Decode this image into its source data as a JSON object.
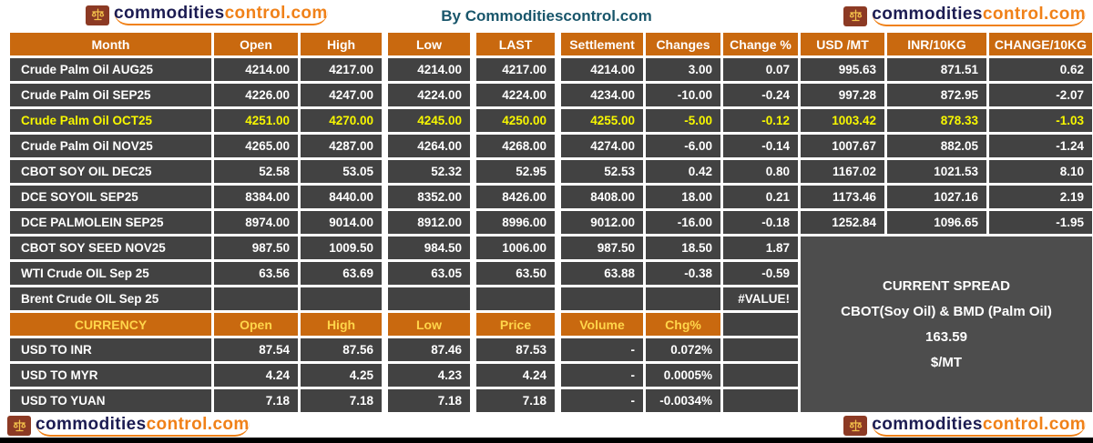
{
  "branding": {
    "logo_text_primary": "commodities",
    "logo_text_secondary": "control.com",
    "center_title": "By Commoditiescontrol.com"
  },
  "spread_panel": {
    "title": "CURRENT SPREAD",
    "subtitle": "CBOT(Soy Oil) & BMD (Palm Oil)",
    "value": "163.59",
    "unit": "$/MT"
  },
  "chart_data": [
    {
      "type": "table",
      "columns": [
        "Month",
        "Open",
        "High",
        "Low",
        "LAST",
        "Settlement",
        "Changes",
        "Change %",
        "USD /MT",
        "INR/10KG",
        "CHANGE/10KG"
      ],
      "highlight_row_index": 2,
      "spread_panel_start_row": 7,
      "rows": [
        [
          "Crude Palm Oil AUG25",
          "4214.00",
          "4217.00",
          "4214.00",
          "4217.00",
          "4214.00",
          "3.00",
          "0.07",
          "995.63",
          "871.51",
          "0.62"
        ],
        [
          "Crude Palm Oil SEP25",
          "4226.00",
          "4247.00",
          "4224.00",
          "4224.00",
          "4234.00",
          "-10.00",
          "-0.24",
          "997.28",
          "872.95",
          "-2.07"
        ],
        [
          "Crude Palm Oil OCT25",
          "4251.00",
          "4270.00",
          "4245.00",
          "4250.00",
          "4255.00",
          "-5.00",
          "-0.12",
          "1003.42",
          "878.33",
          "-1.03"
        ],
        [
          "Crude Palm Oil NOV25",
          "4265.00",
          "4287.00",
          "4264.00",
          "4268.00",
          "4274.00",
          "-6.00",
          "-0.14",
          "1007.67",
          "882.05",
          "-1.24"
        ],
        [
          "CBOT SOY OIL DEC25",
          "52.58",
          "53.05",
          "52.32",
          "52.95",
          "52.53",
          "0.42",
          "0.80",
          "1167.02",
          "1021.53",
          "8.10"
        ],
        [
          "DCE SOYOIL SEP25",
          "8384.00",
          "8440.00",
          "8352.00",
          "8426.00",
          "8408.00",
          "18.00",
          "0.21",
          "1173.46",
          "1027.16",
          "2.19"
        ],
        [
          "DCE PALMOLEIN SEP25",
          "8974.00",
          "9014.00",
          "8912.00",
          "8996.00",
          "9012.00",
          "-16.00",
          "-0.18",
          "1252.84",
          "1096.65",
          "-1.95"
        ],
        [
          "CBOT SOY SEED NOV25",
          "987.50",
          "1009.50",
          "984.50",
          "1006.00",
          "987.50",
          "18.50",
          "1.87"
        ],
        [
          "WTI Crude OIL Sep 25",
          "63.56",
          "63.69",
          "63.05",
          "63.50",
          "63.88",
          "-0.38",
          "-0.59"
        ],
        [
          "Brent Crude OIL Sep 25",
          "",
          "",
          "",
          "",
          "",
          "",
          "#VALUE!"
        ]
      ]
    },
    {
      "type": "table",
      "columns": [
        "CURRENCY",
        "Open",
        "High",
        "Low",
        "Price",
        "Volume",
        "Chg%",
        ""
      ],
      "rows": [
        [
          "USD TO INR",
          "87.54",
          "87.56",
          "87.46",
          "87.53",
          "-",
          "0.072%",
          ""
        ],
        [
          "USD TO MYR",
          "4.24",
          "4.25",
          "4.23",
          "4.24",
          "-",
          "0.0005%",
          ""
        ],
        [
          "USD TO YUAN",
          "7.18",
          "7.18",
          "7.18",
          "7.18",
          "-",
          "-0.0034%",
          ""
        ]
      ]
    }
  ],
  "colors": {
    "orange": "#C9690F",
    "row_bg": "#424242",
    "highlight_text": "#F7F700",
    "currency_header_text": "#FFD54A",
    "title_color": "#19566B",
    "logo_primary": "#1C1C52",
    "logo_secondary": "#F08118",
    "spread_bg": "#4D4D4D",
    "black_bar": "#000000",
    "logo_icon_bg": "#8C3A24",
    "logo_icon_fg": "#F3C14B"
  }
}
